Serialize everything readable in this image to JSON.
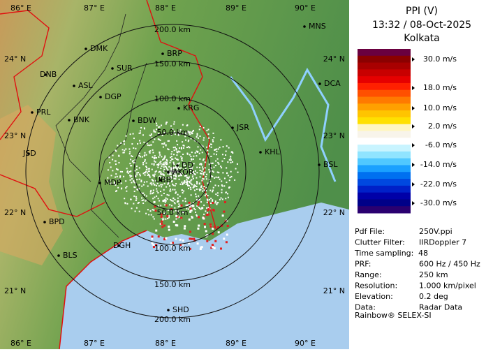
{
  "map": {
    "lon_labels_top": [
      "86° E",
      "87° E",
      "88° E",
      "89° E",
      "90° E"
    ],
    "lon_labels_bottom": [
      "86° E",
      "87° E",
      "88° E",
      "89° E",
      "90° E"
    ],
    "lat_labels_left": [
      "24° N",
      "23° N",
      "22° N",
      "21° N"
    ],
    "lat_labels_right": [
      "24° N",
      "23° N",
      "22° N",
      "21° N"
    ],
    "range_labels_north": [
      "50.0 km",
      "100.0 km",
      "150.0 km",
      "200.0 km"
    ],
    "range_labels_south": [
      "50.0 km",
      "100.0 km",
      "150.0 km",
      "200.0 km"
    ],
    "cities": [
      "MNS",
      "DMK",
      "BRP",
      "DNB",
      "SUR",
      "ASL",
      "DGP",
      "DCA",
      "PRL",
      "BNK",
      "KRG",
      "BDW",
      "JSR",
      "KHL",
      "JSD",
      "DD",
      "BSL",
      "MDP",
      "UBB",
      "AKOR",
      "BPD",
      "BLS",
      "DGH",
      "SHD"
    ]
  },
  "panel": {
    "title": "PPI (V)",
    "time": "13:32 / 08-Oct-2025",
    "site": "Kolkata",
    "scale_labels": [
      "30.0 m/s",
      "18.0 m/s",
      "10.0 m/s",
      "2.0 m/s",
      "-6.0 m/s",
      "-14.0 m/s",
      "-22.0 m/s",
      "-30.0 m/s"
    ],
    "info": [
      [
        "Pdf File:",
        "250V.ppi"
      ],
      [
        "Clutter Filter:",
        "IIRDoppler 7"
      ],
      [
        "Time sampling:",
        "48"
      ],
      [
        "PRF:",
        "600 Hz / 450 Hz"
      ],
      [
        "Range:",
        "250 km"
      ],
      [
        "Resolution:",
        "1.000 km/pixel"
      ],
      [
        "Elevation:",
        "0.2 deg"
      ],
      [
        "Data:",
        "Radar Data"
      ]
    ],
    "footer": "Rainbow® SELEX-SI"
  }
}
